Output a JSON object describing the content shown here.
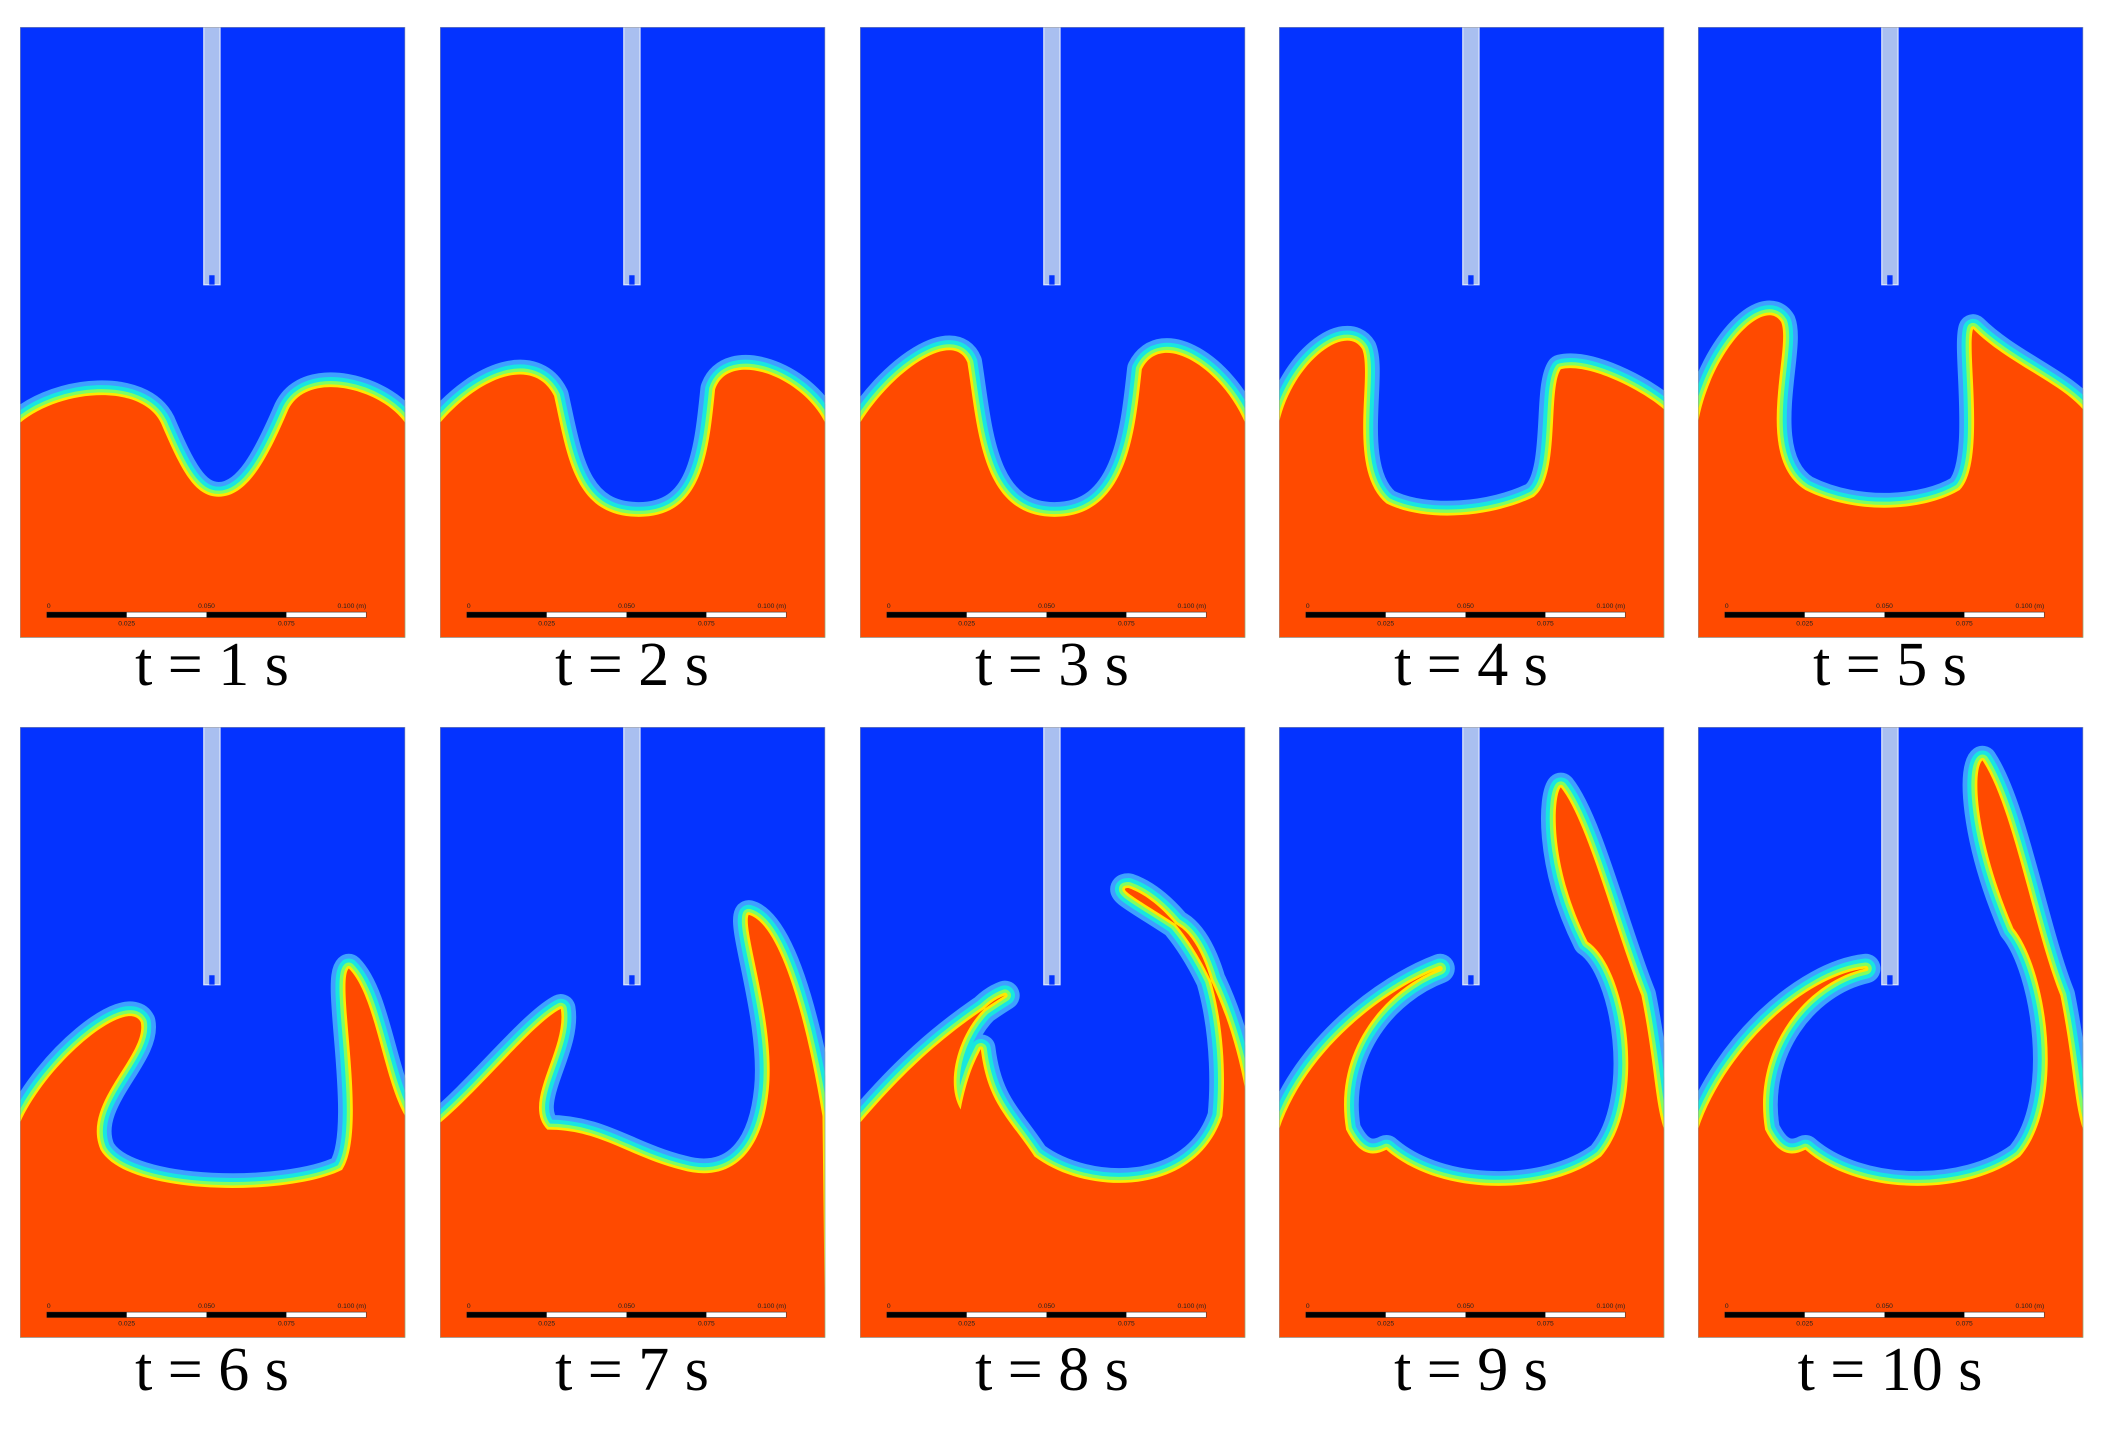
{
  "panels": [
    {
      "caption": "t = 1 s"
    },
    {
      "caption": "t = 2 s"
    },
    {
      "caption": "t = 3 s"
    },
    {
      "caption": "t = 4 s"
    },
    {
      "caption": "t = 5 s"
    },
    {
      "caption": "t = 6 s"
    },
    {
      "caption": "t = 7 s"
    },
    {
      "caption": "t = 8 s"
    },
    {
      "caption": "t = 9 s"
    },
    {
      "caption": "t = 10 s"
    }
  ],
  "scale_bar": {
    "labels": [
      "0",
      "0.050",
      "0.100 (m)"
    ],
    "sublabels": [
      "0.025",
      "0.075"
    ]
  }
}
